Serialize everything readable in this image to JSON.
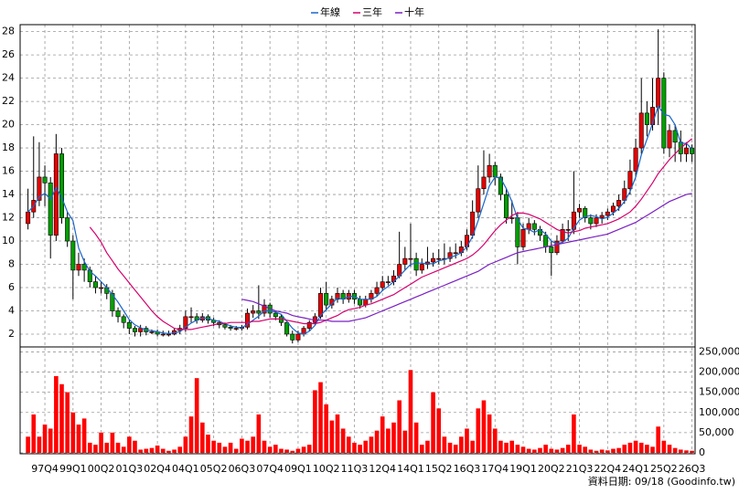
{
  "chart_data": {
    "type": "candlestick",
    "categories": [
      null,
      null,
      null,
      "97Q4",
      null,
      null,
      null,
      null,
      "99Q1",
      null,
      null,
      null,
      null,
      "00Q2",
      null,
      null,
      null,
      null,
      "01Q3",
      null,
      null,
      null,
      null,
      "02Q4",
      null,
      null,
      null,
      null,
      "04Q1",
      null,
      null,
      null,
      null,
      "05Q2",
      null,
      null,
      null,
      null,
      "06Q3",
      null,
      null,
      null,
      null,
      "07Q4",
      null,
      null,
      null,
      null,
      "09Q1",
      null,
      null,
      null,
      null,
      "10Q2",
      null,
      null,
      null,
      null,
      "11Q3",
      null,
      null,
      null,
      null,
      "12Q4",
      null,
      null,
      null,
      null,
      "14Q1",
      null,
      null,
      null,
      null,
      "15Q2",
      null,
      null,
      null,
      null,
      "16Q3",
      null,
      null,
      null,
      null,
      "17Q4",
      null,
      null,
      null,
      null,
      "19Q1",
      null,
      null,
      null,
      null,
      "20Q2",
      null,
      null,
      null,
      null,
      "21Q3",
      null,
      null,
      null,
      null,
      "22Q4",
      null,
      null,
      null,
      null,
      "24Q1",
      null,
      null,
      null,
      null,
      "25Q2",
      null,
      null,
      null,
      null,
      "26Q3"
    ],
    "open": [
      11.5,
      12.5,
      13.5,
      15.5,
      15,
      10.5,
      17.5,
      12,
      10,
      7.5,
      8,
      7.5,
      6.5,
      6,
      6,
      5.5,
      4,
      3.5,
      3,
      2.5,
      2.2,
      2.5,
      2.2,
      2.2,
      2,
      2,
      2,
      2.3,
      2.5,
      3.5,
      3.5,
      3.2,
      3.5,
      3.2,
      3,
      2.8,
      2.6,
      2.5,
      2.5,
      2.6,
      3.8,
      4,
      3.8,
      4.5,
      3.8,
      3.5,
      3,
      2,
      1.5,
      2,
      2.5,
      3,
      3.5,
      5.5,
      4.5,
      5,
      5.5,
      5,
      5.5,
      5,
      4.5,
      5,
      5.5,
      6,
      6.5,
      6.5,
      7,
      8,
      8.5,
      8.5,
      7.5,
      8,
      8.2,
      8.5,
      8.5,
      8.5,
      9,
      9,
      9.5,
      10.5,
      12.5,
      14.5,
      15.5,
      16.5,
      15.5,
      14,
      12,
      12,
      9.5,
      11,
      11.5,
      11,
      10.5,
      9.5,
      9,
      10,
      11,
      11,
      12.5,
      12.8,
      12,
      11.5,
      12,
      12.2,
      12.5,
      13,
      13.5,
      14.5,
      16,
      18,
      21,
      20,
      21.5,
      24,
      18,
      19.5,
      18.5,
      17.5,
      18
    ],
    "high": [
      14.5,
      19,
      18.5,
      16.5,
      15.5,
      19.2,
      18,
      12.5,
      10.5,
      9,
      8.5,
      7.8,
      7,
      6.5,
      6.3,
      5.8,
      4.3,
      3.7,
      3.2,
      2.7,
      2.8,
      2.7,
      2.4,
      2.4,
      2.3,
      2.3,
      2.5,
      2.8,
      4,
      4.3,
      3.8,
      3.8,
      3.7,
      3.4,
      3.2,
      3,
      2.8,
      2.7,
      2.8,
      4.2,
      4.5,
      6.2,
      5,
      4.7,
      4,
      3.7,
      3.2,
      2.3,
      2.3,
      2.7,
      3.2,
      3.8,
      6,
      6.5,
      5.3,
      6,
      5.8,
      5.8,
      5.8,
      5.3,
      5.3,
      5.8,
      6.5,
      7,
      7,
      7.5,
      10.8,
      9.5,
      11.5,
      9,
      8.5,
      9.5,
      9,
      9.3,
      9.8,
      9.5,
      9.8,
      10,
      11,
      13.5,
      16.5,
      17.8,
      17.5,
      16.8,
      15.8,
      14.5,
      13.5,
      12.5,
      11.5,
      12,
      11.8,
      11.3,
      10.8,
      10,
      10.5,
      11.5,
      11.8,
      16,
      13.2,
      13,
      12.3,
      12.3,
      12.5,
      12.8,
      13.3,
      14,
      15.2,
      17,
      18.8,
      24,
      22,
      24,
      28.2,
      24.5,
      20,
      20,
      19.5,
      18.5,
      18.3
    ],
    "low": [
      11,
      12,
      13,
      13,
      8.5,
      10,
      11.5,
      9.5,
      5,
      7,
      6.5,
      6,
      5.5,
      5.5,
      5,
      3.5,
      3,
      2.5,
      2,
      1.8,
      1.8,
      1.9,
      2,
      1.8,
      1.8,
      1.8,
      1.9,
      2,
      2.2,
      3,
      2.9,
      3,
      2.9,
      2.7,
      2.5,
      2.4,
      2.3,
      2.3,
      2.3,
      2.4,
      3.4,
      3.3,
      3.5,
      3.4,
      3.2,
      2.7,
      1.8,
      1.2,
      1.3,
      1.8,
      2.3,
      2.8,
      3.3,
      4,
      4.2,
      4.7,
      4.6,
      4.7,
      4.6,
      4.2,
      4.3,
      4.7,
      5.2,
      5.7,
      6.2,
      6.2,
      6.8,
      7.5,
      7.8,
      7,
      7.2,
      7.6,
      7.8,
      8,
      8,
      8.2,
      8.5,
      8.7,
      9.2,
      10.2,
      12,
      14,
      15,
      14.8,
      13.5,
      11.5,
      11.5,
      8,
      9.2,
      10.6,
      10.5,
      10,
      9,
      7,
      8.8,
      9.8,
      10,
      10.6,
      12,
      11.6,
      11,
      11.2,
      11.5,
      11.8,
      12.2,
      12.6,
      13.2,
      14,
      15.5,
      17.5,
      19,
      19.5,
      20,
      17.5,
      17.2,
      16.8,
      16.8,
      16.8,
      16.8
    ],
    "close": [
      12.5,
      13.5,
      15.5,
      15,
      10.5,
      17.5,
      12,
      10,
      7.5,
      8,
      7.5,
      6.5,
      6,
      6,
      5.5,
      4,
      3.5,
      3,
      2.5,
      2.2,
      2.5,
      2.2,
      2.2,
      2,
      2,
      2,
      2.3,
      2.5,
      3.5,
      3.5,
      3.2,
      3.5,
      3.2,
      3,
      2.8,
      2.6,
      2.5,
      2.5,
      2.6,
      3.8,
      4,
      3.8,
      4.5,
      3.8,
      3.5,
      3,
      2,
      1.5,
      2,
      2.5,
      3,
      3.5,
      5.5,
      4.5,
      5,
      5.5,
      5,
      5.5,
      5,
      4.5,
      5,
      5.5,
      6,
      6.5,
      6.5,
      7,
      8,
      8.5,
      8.5,
      7.5,
      8,
      8.2,
      8.5,
      8.5,
      8.5,
      9,
      9,
      9.5,
      10.5,
      12.5,
      14.5,
      15.5,
      16.5,
      15.5,
      14,
      12,
      12,
      9.5,
      11,
      11.5,
      11,
      10.5,
      9.5,
      9,
      10,
      11,
      11,
      12.5,
      12.8,
      12,
      11.5,
      12,
      12.2,
      12.5,
      13,
      13.5,
      14.5,
      16,
      18,
      21,
      20,
      21.5,
      24,
      18,
      19.5,
      18.5,
      17.5,
      18,
      17.5
    ],
    "up_color": "#e60000",
    "down_color": "#00a000",
    "ylim": [
      0.9,
      28.6
    ],
    "yticks": [
      2,
      4,
      6,
      8,
      10,
      12,
      14,
      16,
      18,
      20,
      22,
      24,
      26,
      28
    ],
    "grid": true,
    "legend": "top",
    "series": [
      {
        "name": "年線",
        "color": "#1a66cc",
        "values": [
          12.5,
          13,
          13.8,
          14.1,
          13.6,
          14.6,
          13.75,
          12.5,
          11.75,
          9.4,
          8.25,
          7.4,
          7,
          6.5,
          6,
          5.4,
          4.75,
          4,
          3.25,
          2.8,
          2.55,
          2.35,
          2.3,
          2.2,
          2.1,
          2.05,
          2.1,
          2.2,
          2.6,
          2.95,
          3.2,
          3.4,
          3.35,
          3.2,
          3.1,
          2.9,
          2.7,
          2.6,
          2.55,
          2.85,
          3.2,
          3.55,
          4,
          4,
          3.9,
          3.7,
          3.1,
          2.5,
          2.1,
          2,
          2.25,
          2.75,
          3.6,
          4.1,
          4.6,
          5.1,
          5,
          5.25,
          5.25,
          5,
          5,
          5,
          5.25,
          5.75,
          6.1,
          6.5,
          7,
          7.5,
          8,
          8.1,
          8.1,
          8.05,
          8.05,
          8.3,
          8.4,
          8.6,
          8.75,
          9,
          9.5,
          10.4,
          11.75,
          13.25,
          14.75,
          15.5,
          15.4,
          14.5,
          13.4,
          11.9,
          11.1,
          11,
          10.75,
          11,
          10.6,
          10,
          9.75,
          9.9,
          10.25,
          11.1,
          11.8,
          12.1,
          12.2,
          12.1,
          11.9,
          12.05,
          12.4,
          12.8,
          13.4,
          14.25,
          15.5,
          17.4,
          18.75,
          20.1,
          21.6,
          20.9,
          20.75,
          20,
          18.4,
          18.4,
          17.9
        ]
      },
      {
        "name": "三年",
        "color": "#d6006e",
        "values": [
          null,
          null,
          null,
          null,
          null,
          null,
          null,
          null,
          null,
          null,
          null,
          11.2,
          10.6,
          9.9,
          9,
          8.3,
          7.6,
          7,
          6.4,
          5.8,
          5.2,
          4.6,
          4,
          3.5,
          3.1,
          2.8,
          2.5,
          2.4,
          2.4,
          2.4,
          2.5,
          2.6,
          2.7,
          2.8,
          2.9,
          2.9,
          3,
          3,
          3,
          3,
          3.1,
          3.1,
          3.2,
          3.3,
          3.3,
          3.3,
          3.2,
          3.1,
          3,
          2.9,
          2.9,
          2.9,
          3,
          3.2,
          3.4,
          3.6,
          3.9,
          4.1,
          4.2,
          4.3,
          4.5,
          4.6,
          4.8,
          5,
          5.2,
          5.4,
          5.7,
          6,
          6.3,
          6.6,
          6.9,
          7.1,
          7.3,
          7.5,
          7.7,
          7.9,
          8.1,
          8.3,
          8.5,
          8.8,
          9.2,
          9.7,
          10.3,
          10.9,
          11.4,
          11.8,
          12.2,
          12.4,
          12.4,
          12.3,
          12.1,
          11.9,
          11.6,
          11.3,
          11,
          10.8,
          10.7,
          10.8,
          10.9,
          11.1,
          11.2,
          11.3,
          11.4,
          11.5,
          11.7,
          11.9,
          12.2,
          12.5,
          13,
          13.6,
          14.3,
          15,
          15.8,
          16.4,
          17,
          17.5,
          18,
          18.4,
          18.8
        ]
      },
      {
        "name": "十年",
        "color": "#7a1fc2",
        "values": [
          null,
          null,
          null,
          null,
          null,
          null,
          null,
          null,
          null,
          null,
          null,
          null,
          null,
          null,
          null,
          null,
          null,
          null,
          null,
          null,
          null,
          null,
          null,
          null,
          null,
          null,
          null,
          null,
          null,
          null,
          null,
          null,
          null,
          null,
          null,
          null,
          null,
          null,
          5,
          4.9,
          4.8,
          4.6,
          4.4,
          4.2,
          4,
          3.9,
          3.8,
          3.6,
          3.5,
          3.4,
          3.3,
          3.2,
          3.2,
          3.2,
          3.1,
          3.1,
          3.1,
          3.1,
          3.2,
          3.3,
          3.4,
          3.6,
          3.8,
          4,
          4.2,
          4.4,
          4.6,
          4.8,
          5,
          5.2,
          5.4,
          5.6,
          5.8,
          6,
          6.2,
          6.4,
          6.6,
          6.8,
          7,
          7.2,
          7.4,
          7.7,
          8,
          8.2,
          8.4,
          8.6,
          8.8,
          9,
          9.1,
          9.2,
          9.3,
          9.4,
          9.5,
          9.6,
          9.7,
          9.8,
          9.9,
          10,
          10.1,
          10.2,
          10.3,
          10.4,
          10.5,
          10.6,
          10.8,
          11,
          11.2,
          11.4,
          11.6,
          11.9,
          12.2,
          12.5,
          12.8,
          13.1,
          13.4,
          13.6,
          13.8,
          14,
          14.1
        ]
      }
    ],
    "volume": {
      "axis": "y2",
      "color": "#ff0000",
      "values": [
        40000,
        95000,
        40000,
        70000,
        60000,
        190000,
        170000,
        150000,
        100000,
        70000,
        85000,
        25000,
        20000,
        50000,
        25000,
        50000,
        25000,
        15000,
        40000,
        30000,
        8000,
        10000,
        12000,
        18000,
        10000,
        5000,
        8000,
        15000,
        40000,
        90000,
        185000,
        75000,
        45000,
        30000,
        25000,
        15000,
        25000,
        10000,
        35000,
        30000,
        40000,
        95000,
        30000,
        15000,
        20000,
        10000,
        8000,
        5000,
        10000,
        15000,
        20000,
        155000,
        175000,
        120000,
        80000,
        95000,
        60000,
        40000,
        25000,
        20000,
        30000,
        40000,
        55000,
        90000,
        60000,
        75000,
        130000,
        55000,
        205000,
        75000,
        20000,
        30000,
        150000,
        110000,
        40000,
        25000,
        20000,
        40000,
        60000,
        30000,
        110000,
        130000,
        95000,
        60000,
        30000,
        25000,
        30000,
        20000,
        15000,
        10000,
        8000,
        12000,
        20000,
        10000,
        8000,
        12000,
        20000,
        95000,
        20000,
        15000,
        8000,
        5000,
        8000,
        6000,
        10000,
        12000,
        20000,
        25000,
        30000,
        25000,
        20000,
        15000,
        65000,
        30000,
        20000,
        12000,
        8000,
        6000,
        5000
      ]
    },
    "y2lim": [
      0,
      260000
    ],
    "y2ticks": [
      0,
      {
        "value": 50000,
        "label": "50,000"
      },
      {
        "value": 100000,
        "label": "100,000"
      },
      {
        "value": 150000,
        "label": "150,000"
      },
      {
        "value": 200000,
        "label": "200,000"
      },
      {
        "value": 250000,
        "label": "250,000"
      }
    ],
    "source": "資料日期: 09/18 (Goodinfo.tw)"
  }
}
